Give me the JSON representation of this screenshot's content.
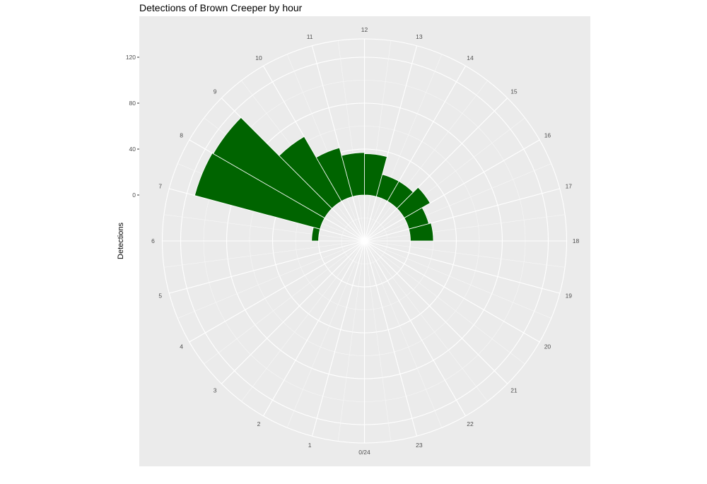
{
  "chart_data": {
    "type": "bar",
    "coord": "polar",
    "title": "Detections of Brown Creeper by hour",
    "ylabel": "Detections",
    "xlabel": "",
    "hour_labels": [
      "0/24",
      "1",
      "2",
      "3",
      "4",
      "5",
      "6",
      "7",
      "8",
      "9",
      "10",
      "11",
      "12",
      "13",
      "14",
      "15",
      "16",
      "17",
      "18",
      "19",
      "20",
      "21",
      "22",
      "23"
    ],
    "y_ticks": [
      "0",
      "40",
      "80",
      "120"
    ],
    "ylim": [
      -40,
      136
    ],
    "bars": [
      {
        "hour": 6.5,
        "value": 6
      },
      {
        "hour": 7.5,
        "value": 113
      },
      {
        "hour": 8.5,
        "value": 112
      },
      {
        "hour": 9.5,
        "value": 65
      },
      {
        "hour": 10.5,
        "value": 44
      },
      {
        "hour": 11.5,
        "value": 37
      },
      {
        "hour": 12.5,
        "value": 36
      },
      {
        "hour": 13.5,
        "value": 20
      },
      {
        "hour": 14.5,
        "value": 20
      },
      {
        "hour": 15.5,
        "value": 26
      },
      {
        "hour": 16.5,
        "value": 18
      },
      {
        "hour": 17.5,
        "value": 20
      }
    ],
    "bar_color": "#006400",
    "panel_color": "#ebebeb",
    "grid": true,
    "legend": "none"
  }
}
